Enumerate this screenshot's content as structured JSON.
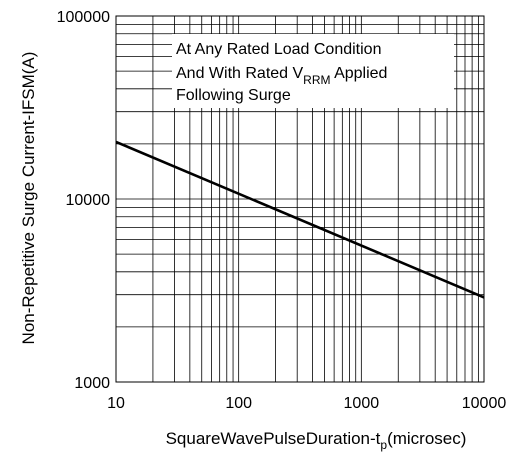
{
  "chart_data": {
    "type": "line",
    "x_scale": "log",
    "y_scale": "log",
    "xlim": [
      10,
      10000
    ],
    "ylim": [
      1000,
      100000
    ],
    "xlabel": "SquareWavePulseDuration-t",
    "xlabel_sub": "p",
    "xlabel_tail": "(microsec)",
    "ylabel": "Non-Repetitive Surge Current-IFSM(A)",
    "x_ticks": [
      10,
      100,
      1000,
      10000
    ],
    "x_tick_labels": [
      "10",
      "100",
      "1000",
      "10000"
    ],
    "y_ticks": [
      1000,
      10000,
      100000
    ],
    "y_tick_labels": [
      "1000",
      "10000",
      "100000"
    ],
    "grid": true,
    "series": [
      {
        "x": [
          10,
          10000
        ],
        "y": [
          20500,
          2900
        ],
        "color": "#000000"
      }
    ],
    "annotation": {
      "line1": "At Any Rated Load Condition",
      "line2_pre": "And With Rated V",
      "line2_sub": "RRM",
      "line2_post": " Applied",
      "line3": "Following Surge"
    }
  }
}
